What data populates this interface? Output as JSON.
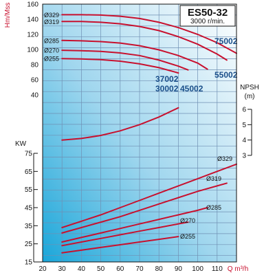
{
  "title": "ES50-32",
  "subtitle": "3000 r/min.",
  "colors": {
    "curve": "#c8102e",
    "model_label": "#1a4f8a",
    "axis_unit": "#c8102e"
  },
  "chart_data": {
    "type": "line",
    "x_axis": {
      "label": "Q m³/h",
      "range": [
        20,
        120
      ],
      "ticks": [
        20,
        30,
        40,
        50,
        60,
        70,
        80,
        90,
        100,
        110
      ]
    },
    "head": {
      "ylabel": "Hm/Mss",
      "ticks": [
        40,
        60,
        80,
        100,
        120,
        140,
        160
      ],
      "range": [
        30,
        160
      ],
      "series": [
        {
          "name": "Ø329",
          "points": [
            [
              30,
              146
            ],
            [
              40,
              146
            ],
            [
              50,
              145.5
            ],
            [
              60,
              144
            ],
            [
              70,
              141
            ],
            [
              80,
              136
            ],
            [
              90,
              129
            ],
            [
              100,
              120
            ],
            [
              110,
              109
            ],
            [
              120,
              95
            ]
          ]
        },
        {
          "name": "Ø319",
          "points": [
            [
              30,
              137
            ],
            [
              40,
              137
            ],
            [
              50,
              136
            ],
            [
              60,
              134
            ],
            [
              70,
              130.5
            ],
            [
              80,
              125
            ],
            [
              90,
              117
            ],
            [
              100,
              107
            ],
            [
              110,
              94
            ],
            [
              115,
              86
            ]
          ]
        },
        {
          "name": "Ø285",
          "points": [
            [
              30,
              112
            ],
            [
              40,
              111.5
            ],
            [
              50,
              110.5
            ],
            [
              60,
              108.5
            ],
            [
              70,
              105
            ],
            [
              80,
              99.5
            ],
            [
              90,
              92
            ],
            [
              100,
              82
            ],
            [
              105,
              74
            ]
          ]
        },
        {
          "name": "Ø270",
          "points": [
            [
              30,
              99
            ],
            [
              40,
              98.5
            ],
            [
              50,
              97.5
            ],
            [
              60,
              95.5
            ],
            [
              70,
              92
            ],
            [
              80,
              86
            ],
            [
              90,
              78
            ],
            [
              95,
              73
            ]
          ]
        },
        {
          "name": "Ø255",
          "points": [
            [
              30,
              88
            ],
            [
              40,
              87.5
            ],
            [
              50,
              86.5
            ],
            [
              60,
              84.5
            ],
            [
              70,
              81
            ],
            [
              80,
              76
            ],
            [
              90,
              69
            ]
          ]
        }
      ],
      "model_labels": [
        "75002",
        "55002",
        "45002",
        "37002",
        "30002"
      ]
    },
    "npsh": {
      "ylabel": "NPSH\n(m)",
      "ticks": [
        3,
        4,
        5,
        6
      ],
      "range": [
        3,
        6
      ],
      "points": [
        [
          30,
          4
        ],
        [
          40,
          4.1
        ],
        [
          50,
          4.3
        ],
        [
          60,
          4.6
        ],
        [
          70,
          5
        ],
        [
          80,
          5.5
        ],
        [
          90,
          6.1
        ]
      ]
    },
    "power": {
      "ylabel": "KW",
      "ticks": [
        15,
        25,
        35,
        45,
        55,
        65,
        75
      ],
      "range": [
        15,
        75
      ],
      "series": [
        {
          "name": "Ø329",
          "points": [
            [
              30,
              34
            ],
            [
              40,
              37.5
            ],
            [
              50,
              41
            ],
            [
              60,
              45
            ],
            [
              70,
              49
            ],
            [
              80,
              53
            ],
            [
              90,
              57
            ],
            [
              100,
              61
            ],
            [
              110,
              65
            ],
            [
              120,
              69
            ]
          ]
        },
        {
          "name": "Ø319",
          "points": [
            [
              30,
              31
            ],
            [
              40,
              34
            ],
            [
              50,
              37
            ],
            [
              60,
              40
            ],
            [
              70,
              43.5
            ],
            [
              80,
              47
            ],
            [
              90,
              50.5
            ],
            [
              100,
              54
            ],
            [
              110,
              57
            ],
            [
              115,
              58.5
            ]
          ]
        },
        {
          "name": "Ø285",
          "points": [
            [
              30,
              26
            ],
            [
              40,
              28.5
            ],
            [
              50,
              31
            ],
            [
              60,
              33.5
            ],
            [
              70,
              36
            ],
            [
              80,
              38.5
            ],
            [
              90,
              41
            ],
            [
              100,
              43.5
            ],
            [
              105,
              45
            ]
          ]
        },
        {
          "name": "Ø270",
          "points": [
            [
              30,
              24
            ],
            [
              40,
              26
            ],
            [
              50,
              28
            ],
            [
              60,
              30
            ],
            [
              70,
              32
            ],
            [
              80,
              34
            ],
            [
              90,
              36
            ],
            [
              95,
              37
            ]
          ]
        },
        {
          "name": "Ø255",
          "points": [
            [
              30,
              20
            ],
            [
              40,
              21.5
            ],
            [
              50,
              23
            ],
            [
              60,
              24.5
            ],
            [
              70,
              26
            ],
            [
              80,
              27.5
            ],
            [
              90,
              29
            ]
          ]
        }
      ]
    },
    "grid": true
  }
}
